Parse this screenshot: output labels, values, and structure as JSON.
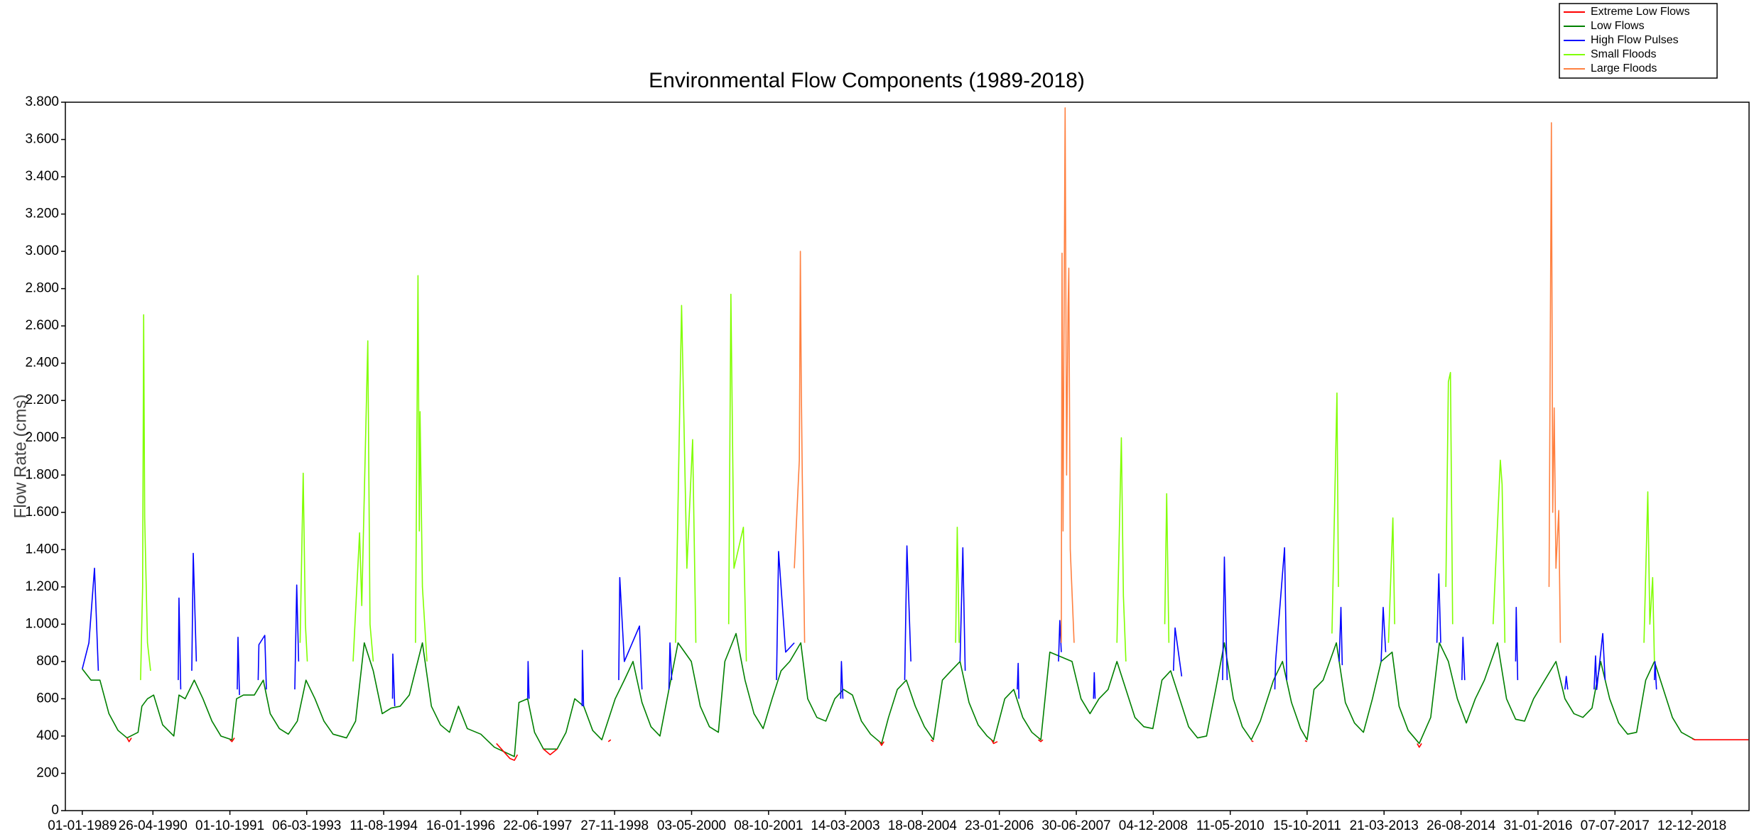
{
  "chart_data": {
    "type": "line",
    "title": "Environmental Flow Components (1989-2018)",
    "y_label": "Flow Rate (cms)",
    "grid": false,
    "legend": "top-right",
    "xlim": [
      "08-09-1988",
      "04-01-2020"
    ],
    "xticks": [
      "01-01-1989",
      "26-04-1990",
      "01-10-1991",
      "06-03-1993",
      "11-08-1994",
      "16-01-1996",
      "22-06-1997",
      "27-11-1998",
      "03-05-2000",
      "08-10-2001",
      "14-03-2003",
      "18-08-2004",
      "23-01-2006",
      "30-06-2007",
      "04-12-2008",
      "11-05-2010",
      "15-10-2011",
      "21-03-2013",
      "26-08-2014",
      "31-01-2016",
      "07-07-2017",
      "12-12-2018"
    ],
    "ylim": [
      0,
      3800
    ],
    "yticks": [
      0,
      200,
      400,
      600,
      800,
      {
        "value": 1000,
        "label": "1.000"
      },
      {
        "value": 1200,
        "label": "1.200"
      },
      {
        "value": 1400,
        "label": "1.400"
      },
      {
        "value": 1600,
        "label": "1.600"
      },
      {
        "value": 1800,
        "label": "1.800"
      },
      {
        "value": 2000,
        "label": "2.000"
      },
      {
        "value": 2200,
        "label": "2.200"
      },
      {
        "value": 2400,
        "label": "2.400"
      },
      {
        "value": 2600,
        "label": "2.600"
      },
      {
        "value": 2800,
        "label": "2.800"
      },
      {
        "value": 3000,
        "label": "3.000"
      },
      {
        "value": 3200,
        "label": "3.200"
      },
      {
        "value": 3400,
        "label": "3.400"
      },
      {
        "value": 3600,
        "label": "3.600"
      },
      {
        "value": 3800,
        "label": "3.800"
      }
    ],
    "series": [
      {
        "name": "Extreme Low Flows",
        "color": "#ff0000",
        "x": [
          "01-11-1989",
          "15-11-1989",
          "01-12-1989",
          "01-12-1989",
          "01-10-1991",
          "15-10-1991",
          "01-11-1991",
          "01-11-1991",
          "15-09-1996",
          "15-12-1996",
          "15-01-1997",
          "05-02-1997",
          "05-02-1997",
          "01-08-1997",
          "15-09-1997",
          "01-11-1997",
          "01-11-1997",
          "15-10-1998",
          "01-11-1998",
          "01-11-1998",
          "01-11-2003",
          "15-11-2003",
          "01-12-2003",
          "01-12-2003",
          "15-10-2004",
          "01-11-2004",
          "01-11-2004",
          "01-12-2005",
          "15-12-2005",
          "10-01-2006",
          "10-01-2006",
          "15-10-2006",
          "01-11-2006",
          "15-11-2006",
          "15-11-2006",
          "01-10-2010",
          "15-10-2010",
          "15-10-2010",
          "01-10-2011",
          "15-10-2011",
          "15-10-2011",
          "01-11-2013",
          "15-11-2013",
          "01-12-2013",
          "01-12-2013",
          "15-12-2018",
          "01-01-2019",
          "31-12-2019"
        ],
        "values": [
          390,
          370,
          390,
          null,
          380,
          370,
          390,
          null,
          360,
          280,
          270,
          300,
          null,
          330,
          300,
          330,
          null,
          370,
          380,
          null,
          370,
          350,
          370,
          null,
          380,
          370,
          null,
          380,
          360,
          370,
          null,
          380,
          370,
          380,
          null,
          375,
          370,
          null,
          375,
          370,
          null,
          360,
          340,
          360,
          null,
          385,
          380,
          380
        ]
      },
      {
        "name": "Low Flows",
        "color": "#008000",
        "x": [
          "01-01-1989",
          "01-03-1989",
          "01-05-1989",
          "01-07-1989",
          "01-09-1989",
          "01-11-1989",
          "15-01-1990",
          "10-02-1990",
          "20-03-1990",
          "01-05-1990",
          "01-07-1990",
          "15-09-1990",
          "20-10-1990",
          "01-12-1990",
          "01-02-1991",
          "01-04-1991",
          "01-06-1991",
          "01-08-1991",
          "15-10-1991",
          "15-11-1991",
          "01-01-1992",
          "15-03-1992",
          "15-05-1992",
          "01-07-1992",
          "01-09-1992",
          "01-11-1992",
          "01-01-1993",
          "01-03-1993",
          "01-05-1993",
          "01-07-1993",
          "01-09-1993",
          "01-12-1993",
          "01-02-1994",
          "01-04-1994",
          "01-06-1994",
          "01-08-1994",
          "01-10-1994",
          "01-12-1994",
          "01-02-1995",
          "01-05-1995",
          "01-07-1995",
          "01-09-1995",
          "01-11-1995",
          "01-01-1996",
          "01-03-1996",
          "01-06-1996",
          "01-09-1996",
          "15-01-1997",
          "15-02-1997",
          "15-04-1997",
          "01-06-1997",
          "01-08-1997",
          "01-11-1997",
          "01-01-1998",
          "01-03-1998",
          "01-05-1998",
          "01-07-1998",
          "01-09-1998",
          "01-12-1998",
          "01-02-1999",
          "01-04-1999",
          "01-06-1999",
          "01-08-1999",
          "01-10-1999",
          "01-12-1999",
          "01-02-2000",
          "01-05-2000",
          "01-07-2000",
          "01-09-2000",
          "01-11-2000",
          "15-12-2000",
          "01-03-2001",
          "01-05-2001",
          "01-07-2001",
          "01-09-2001",
          "01-11-2001",
          "01-01-2002",
          "01-03-2002",
          "15-05-2002",
          "01-07-2002",
          "01-09-2002",
          "01-11-2002",
          "01-01-2003",
          "01-03-2003",
          "01-05-2003",
          "01-07-2003",
          "01-09-2003",
          "15-11-2003",
          "01-01-2004",
          "01-03-2004",
          "01-05-2004",
          "01-07-2004",
          "01-09-2004",
          "01-11-2004",
          "01-01-2005",
          "01-03-2005",
          "01-05-2005",
          "01-07-2005",
          "01-09-2005",
          "01-11-2005",
          "15-12-2005",
          "01-03-2006",
          "01-05-2006",
          "01-07-2006",
          "01-09-2006",
          "01-11-2006",
          "01-01-2007",
          "01-06-2007",
          "01-08-2007",
          "01-10-2007",
          "01-12-2007",
          "01-02-2008",
          "01-04-2008",
          "01-06-2008",
          "01-08-2008",
          "01-10-2008",
          "01-12-2008",
          "01-02-2009",
          "01-04-2009",
          "01-06-2009",
          "01-08-2009",
          "01-10-2009",
          "01-12-2009",
          "01-02-2010",
          "01-04-2010",
          "01-06-2010",
          "01-08-2010",
          "01-10-2010",
          "01-12-2010",
          "01-03-2011",
          "01-05-2011",
          "01-07-2011",
          "01-09-2011",
          "15-10-2011",
          "01-12-2011",
          "01-02-2012",
          "01-05-2012",
          "01-07-2012",
          "01-09-2012",
          "01-11-2012",
          "01-01-2013",
          "01-03-2013",
          "15-05-2013",
          "01-07-2013",
          "01-09-2013",
          "15-11-2013",
          "01-02-2014",
          "01-04-2014",
          "01-06-2014",
          "01-08-2014",
          "01-10-2014",
          "01-12-2014",
          "01-02-2015",
          "01-05-2015",
          "01-07-2015",
          "01-09-2015",
          "01-11-2015",
          "01-01-2016",
          "01-06-2016",
          "01-08-2016",
          "01-10-2016",
          "01-12-2016",
          "01-02-2017",
          "01-04-2017",
          "01-06-2017",
          "01-08-2017",
          "01-10-2017",
          "01-12-2017",
          "01-02-2018",
          "01-04-2018",
          "01-06-2018",
          "01-08-2018",
          "01-10-2018",
          "01-01-2019"
        ],
        "values": [
          760,
          700,
          700,
          520,
          430,
          390,
          420,
          560,
          600,
          620,
          460,
          400,
          620,
          600,
          700,
          600,
          480,
          400,
          380,
          600,
          620,
          620,
          700,
          520,
          440,
          410,
          480,
          700,
          600,
          480,
          410,
          390,
          480,
          900,
          750,
          520,
          550,
          560,
          620,
          900,
          560,
          460,
          420,
          560,
          440,
          410,
          340,
          290,
          580,
          600,
          420,
          330,
          330,
          420,
          600,
          560,
          430,
          380,
          600,
          700,
          800,
          580,
          450,
          400,
          650,
          900,
          800,
          560,
          450,
          420,
          800,
          950,
          700,
          520,
          440,
          600,
          750,
          800,
          900,
          600,
          500,
          480,
          600,
          650,
          620,
          480,
          410,
          360,
          500,
          650,
          700,
          560,
          450,
          380,
          700,
          750,
          800,
          580,
          460,
          400,
          370,
          600,
          650,
          500,
          420,
          380,
          850,
          800,
          600,
          520,
          600,
          650,
          800,
          650,
          500,
          450,
          440,
          700,
          750,
          600,
          450,
          390,
          400,
          650,
          900,
          600,
          450,
          380,
          480,
          700,
          800,
          580,
          440,
          380,
          650,
          700,
          900,
          580,
          470,
          420,
          600,
          800,
          850,
          560,
          430,
          360,
          500,
          900,
          800,
          600,
          470,
          600,
          700,
          900,
          600,
          490,
          480,
          600,
          800,
          600,
          520,
          500,
          550,
          800,
          600,
          470,
          410,
          420,
          700,
          800,
          650,
          500,
          420,
          380
        ]
      },
      {
        "name": "High Flow Pulses",
        "color": "#0000ff",
        "x": [
          "01-01-1989",
          "15-02-1989",
          "25-03-1989",
          "20-04-1989",
          "20-04-1989",
          "15-10-1990",
          "20-10-1990",
          "01-11-1990",
          "01-11-1990",
          "15-01-1991",
          "25-01-1991",
          "15-02-1991",
          "15-02-1991",
          "20-11-1991",
          "25-11-1991",
          "05-12-1991",
          "05-12-1991",
          "10-04-1992",
          "15-04-1992",
          "25-05-1992",
          "05-06-1992",
          "05-06-1992",
          "15-12-1992",
          "28-12-1992",
          "10-01-1993",
          "10-01-1993",
          "10-10-1994",
          "12-10-1994",
          "25-10-1994",
          "25-10-1994",
          "15-04-1997",
          "18-04-1997",
          "25-04-1997",
          "25-04-1997",
          "20-04-1998",
          "22-04-1998",
          "30-04-1998",
          "30-04-1998",
          "25-12-1998",
          "01-01-1999",
          "01-02-1999",
          "15-05-1999",
          "01-06-1999",
          "01-06-1999",
          "01-12-1999",
          "08-12-1999",
          "20-12-1999",
          "20-12-1999",
          "01-12-2001",
          "15-12-2001",
          "01-02-2002",
          "01-04-2002",
          "01-04-2002",
          "10-02-2003",
          "15-02-2003",
          "25-02-2003",
          "25-02-2003",
          "20-04-2004",
          "05-05-2004",
          "01-06-2004",
          "01-06-2004",
          "01-05-2005",
          "20-05-2005",
          "05-06-2005",
          "05-06-2005",
          "25-05-2006",
          "31-05-2006",
          "05-06-2006",
          "05-06-2006",
          "01-03-2007",
          "10-03-2007",
          "20-03-2007",
          "20-03-2007",
          "25-10-2007",
          "30-10-2007",
          "05-11-2007",
          "05-11-2007",
          "20-04-2009",
          "01-05-2009",
          "15-06-2009",
          "15-06-2009",
          "20-03-2010",
          "01-04-2010",
          "20-04-2010",
          "20-04-2010",
          "10-03-2011",
          "15-03-2011",
          "15-05-2011",
          "30-05-2011",
          "30-05-2011",
          "20-05-2012",
          "01-06-2012",
          "10-06-2012",
          "10-06-2012",
          "01-03-2013",
          "15-03-2013",
          "01-04-2013",
          "01-04-2013",
          "15-03-2014",
          "28-03-2014",
          "10-04-2014",
          "10-04-2014",
          "01-09-2014",
          "08-09-2014",
          "20-09-2014",
          "20-09-2014",
          "01-09-2015",
          "05-09-2015",
          "15-09-2015",
          "15-09-2015",
          "01-08-2016",
          "10-08-2016",
          "20-08-2016",
          "20-08-2016",
          "15-02-2017",
          "25-02-2017",
          "05-03-2017",
          "15-04-2017",
          "01-05-2017",
          "01-05-2017",
          "01-04-2018",
          "05-04-2018",
          "15-04-2018"
        ],
        "values": [
          760,
          900,
          1300,
          750,
          null,
          700,
          1140,
          650,
          null,
          750,
          1380,
          800,
          null,
          650,
          930,
          620,
          null,
          700,
          890,
          940,
          650,
          null,
          650,
          1210,
          800,
          null,
          600,
          840,
          560,
          null,
          600,
          800,
          600,
          null,
          560,
          860,
          560,
          null,
          700,
          1250,
          800,
          990,
          650,
          null,
          650,
          900,
          700,
          null,
          700,
          1390,
          850,
          900,
          null,
          600,
          800,
          600,
          null,
          700,
          1420,
          800,
          null,
          800,
          1410,
          750,
          null,
          650,
          790,
          600,
          null,
          800,
          1020,
          850,
          null,
          600,
          740,
          600,
          null,
          750,
          980,
          720,
          null,
          700,
          1360,
          700,
          null,
          650,
          800,
          1410,
          700,
          null,
          800,
          1090,
          780,
          null,
          800,
          1090,
          850,
          null,
          900,
          1270,
          900,
          null,
          700,
          930,
          700,
          null,
          800,
          1090,
          700,
          null,
          650,
          720,
          650,
          null,
          650,
          830,
          650,
          950,
          700,
          null,
          700,
          800,
          650
        ]
      },
      {
        "name": "Small Floods",
        "color": "#80ff00",
        "x": [
          "01-02-1990",
          "15-02-1990",
          "22-02-1990",
          "01-03-1990",
          "20-03-1990",
          "10-04-1990",
          "10-04-1990",
          "20-01-1993",
          "10-02-1993",
          "25-02-1993",
          "10-03-1993",
          "10-03-1993",
          "15-01-1994",
          "28-02-1994",
          "15-03-1994",
          "25-04-1994",
          "10-05-1994",
          "01-06-1994",
          "01-06-1994",
          "15-03-1995",
          "01-04-1995",
          "10-04-1995",
          "15-04-1995",
          "01-05-1995",
          "01-06-1995",
          "01-06-1995",
          "15-01-2000",
          "25-02-2000",
          "01-04-2000",
          "10-05-2000",
          "01-06-2000",
          "01-06-2000",
          "10-01-2001",
          "25-01-2001",
          "15-02-2001",
          "20-04-2001",
          "10-05-2001",
          "10-05-2001",
          "01-04-2005",
          "12-04-2005",
          "25-04-2005",
          "25-04-2005",
          "01-04-2008",
          "01-05-2008",
          "15-05-2008",
          "01-06-2008",
          "01-06-2008",
          "20-02-2009",
          "05-03-2009",
          "20-03-2009",
          "20-03-2009",
          "01-04-2012",
          "05-05-2012",
          "15-05-2012",
          "15-05-2012",
          "20-04-2013",
          "20-05-2013",
          "01-06-2013",
          "01-06-2013",
          "15-05-2014",
          "01-06-2014",
          "15-06-2014",
          "30-06-2014",
          "30-06-2014",
          "01-04-2015",
          "20-05-2015",
          "01-06-2015",
          "20-06-2015",
          "20-06-2015",
          "20-01-2018",
          "15-02-2018",
          "01-03-2018",
          "20-03-2018",
          "01-04-2018"
        ],
        "values": [
          700,
          1200,
          2660,
          1570,
          900,
          750,
          null,
          900,
          1810,
          1000,
          800,
          null,
          800,
          1490,
          1100,
          2520,
          1000,
          800,
          null,
          900,
          2870,
          1500,
          2140,
          1200,
          800,
          null,
          900,
          2710,
          1300,
          1990,
          900,
          null,
          1000,
          2770,
          1300,
          1520,
          800,
          null,
          900,
          1520,
          900,
          null,
          900,
          2000,
          1150,
          800,
          null,
          1000,
          1700,
          900,
          null,
          950,
          2240,
          1200,
          null,
          900,
          1570,
          1000,
          null,
          1200,
          2300,
          2350,
          1000,
          null,
          1000,
          1880,
          1750,
          900,
          null,
          900,
          1710,
          1000,
          1250,
          800
        ]
      },
      {
        "name": "Large Floods",
        "color": "#ff8040",
        "x": [
          "01-04-2002",
          "05-05-2002",
          "12-05-2002",
          "18-05-2002",
          "25-05-2002",
          "10-06-2002",
          "10-06-2002",
          "20-03-2007",
          "25-03-2007",
          "01-04-2007",
          "08-04-2007",
          "15-04-2007",
          "25-04-2007",
          "05-05-2007",
          "10-05-2007",
          "20-05-2007",
          "15-06-2007",
          "15-06-2007",
          "15-04-2016",
          "01-05-2016",
          "10-05-2016",
          "20-05-2016",
          "01-06-2016",
          "20-06-2016",
          "01-07-2016"
        ],
        "values": [
          1300,
          1880,
          3000,
          2300,
          1800,
          900,
          null,
          900,
          2990,
          1500,
          2700,
          3770,
          1800,
          2700,
          2910,
          1400,
          900,
          null,
          1200,
          3690,
          1600,
          2160,
          1300,
          1610,
          900
        ]
      }
    ]
  }
}
